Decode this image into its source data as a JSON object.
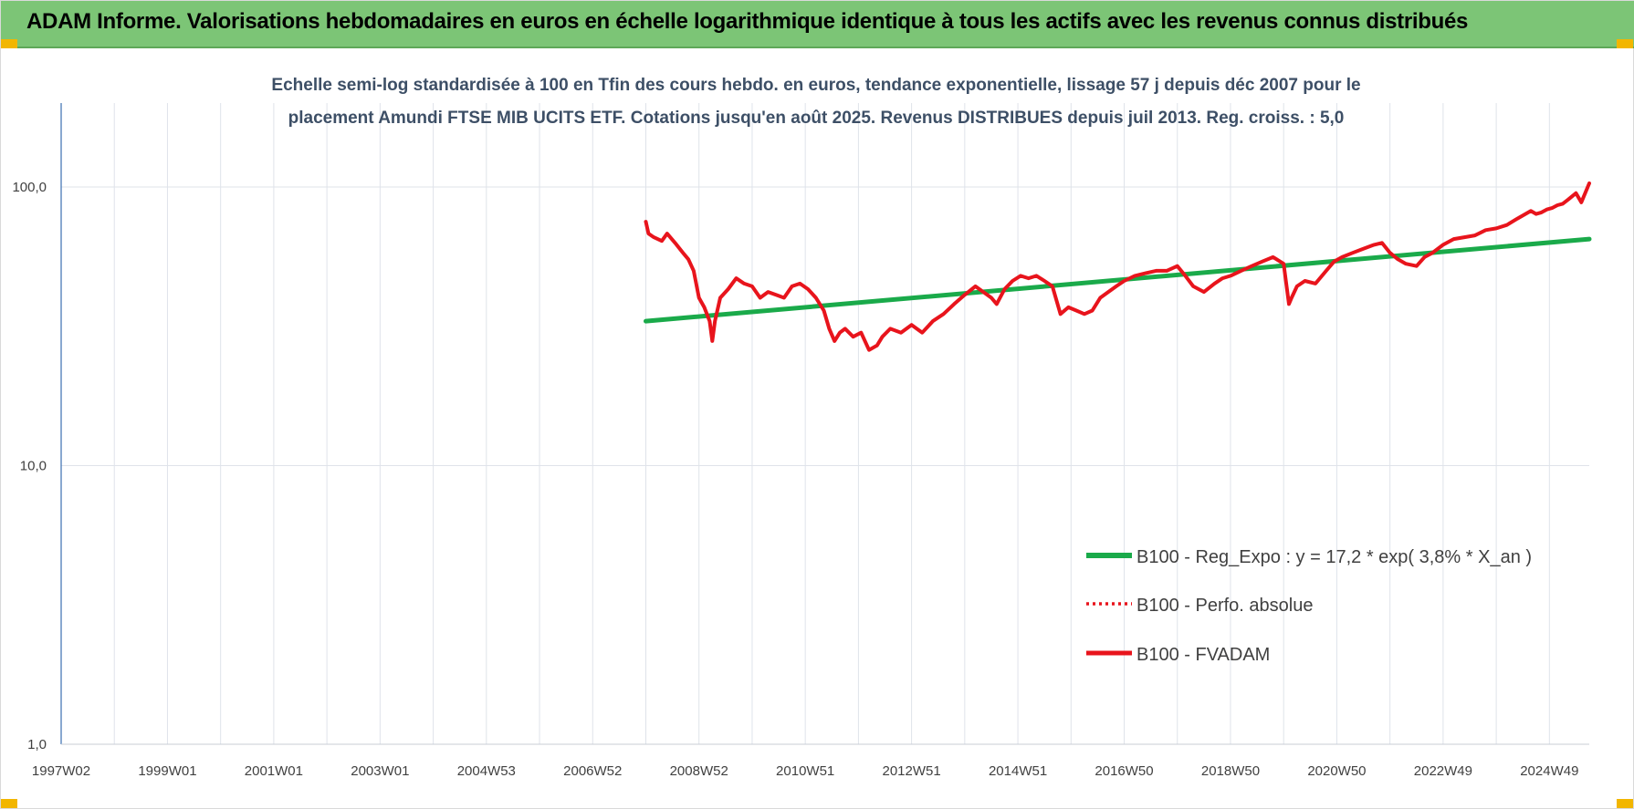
{
  "header": {
    "title": "ADAM Informe. Valorisations hebdomadaires en euros en échelle logarithmique identique à tous les actifs avec les revenus connus distribués"
  },
  "colors": {
    "banner": "#7cc576",
    "corner": "#f2b600",
    "regression": "#1aaa4a",
    "fvadam": "#e8141c",
    "perfo": "#e8141c"
  },
  "chart_data": {
    "type": "line",
    "title_lines": [
      "Echelle semi-log standardisée à 100 en Tfin des cours hebdo. en euros, tendance exponentielle, lissage 57 j depuis déc 2007 pour le",
      "placement Amundi FTSE MIB  UCITS ETF. Cotations jusqu'en août 2025.  Revenus DISTRIBUES depuis juil 2013.  Reg. croiss. : 5,0"
    ],
    "y_scale": "log",
    "ylim": [
      1,
      200
    ],
    "y_ticks": [
      {
        "value": 1,
        "label": "1,0"
      },
      {
        "value": 10,
        "label": "10,0"
      },
      {
        "value": 100,
        "label": "100,0"
      }
    ],
    "xlim": [
      1997.0,
      2025.75
    ],
    "x_ticks": [
      {
        "value": 1997.0,
        "label": "1997W02"
      },
      {
        "value": 1999.0,
        "label": "1999W01"
      },
      {
        "value": 2001.0,
        "label": "2001W01"
      },
      {
        "value": 2003.0,
        "label": "2003W01"
      },
      {
        "value": 2005.0,
        "label": "2004W53"
      },
      {
        "value": 2007.0,
        "label": "2006W52"
      },
      {
        "value": 2009.0,
        "label": "2008W52"
      },
      {
        "value": 2011.0,
        "label": "2010W51"
      },
      {
        "value": 2013.0,
        "label": "2012W51"
      },
      {
        "value": 2015.0,
        "label": "2014W51"
      },
      {
        "value": 2017.0,
        "label": "2016W50"
      },
      {
        "value": 2019.0,
        "label": "2018W50"
      },
      {
        "value": 2021.0,
        "label": "2020W50"
      },
      {
        "value": 2023.0,
        "label": "2022W49"
      },
      {
        "value": 2025.0,
        "label": "2024W49"
      }
    ],
    "grid": "vertical",
    "legend_position": "bottom-right",
    "series": [
      {
        "name": "B100 - Reg_Expo : y = 17,2 * exp( 3,8% *  X_an )",
        "style": "solid-thick",
        "color": "#1aaa4a",
        "x": [
          2008.0,
          2025.75
        ],
        "y": [
          33,
          65
        ]
      },
      {
        "name": "B100 - Perfo. absolue",
        "style": "dotted",
        "color": "#e8141c",
        "x": [],
        "y": []
      },
      {
        "name": "B100 - FVADAM",
        "style": "solid",
        "color": "#e8141c",
        "x": [
          2008.0,
          2008.05,
          2008.15,
          2008.3,
          2008.4,
          2008.55,
          2008.7,
          2008.8,
          2008.9,
          2009.0,
          2009.1,
          2009.2,
          2009.25,
          2009.3,
          2009.4,
          2009.55,
          2009.7,
          2009.85,
          2010.0,
          2010.15,
          2010.3,
          2010.45,
          2010.6,
          2010.75,
          2010.9,
          2011.05,
          2011.2,
          2011.35,
          2011.45,
          2011.55,
          2011.65,
          2011.75,
          2011.9,
          2012.05,
          2012.2,
          2012.35,
          2012.45,
          2012.6,
          2012.8,
          2013.0,
          2013.2,
          2013.4,
          2013.6,
          2013.8,
          2014.0,
          2014.2,
          2014.35,
          2014.5,
          2014.6,
          2014.75,
          2014.9,
          2015.05,
          2015.2,
          2015.35,
          2015.5,
          2015.65,
          2015.8,
          2015.95,
          2016.1,
          2016.25,
          2016.4,
          2016.55,
          2016.7,
          2016.85,
          2017.0,
          2017.2,
          2017.4,
          2017.6,
          2017.8,
          2018.0,
          2018.15,
          2018.3,
          2018.5,
          2018.7,
          2018.85,
          2019.0,
          2019.2,
          2019.4,
          2019.6,
          2019.8,
          2020.0,
          2020.1,
          2020.15,
          2020.25,
          2020.4,
          2020.6,
          2020.8,
          2020.95,
          2021.1,
          2021.3,
          2021.5,
          2021.7,
          2021.85,
          2022.0,
          2022.15,
          2022.3,
          2022.5,
          2022.65,
          2022.8,
          2023.0,
          2023.2,
          2023.4,
          2023.6,
          2023.8,
          2024.0,
          2024.2,
          2024.4,
          2024.55,
          2024.65,
          2024.75,
          2024.85,
          2024.95,
          2025.05,
          2025.15,
          2025.25,
          2025.35,
          2025.5,
          2025.6,
          2025.75
        ],
        "y": [
          75,
          68,
          66,
          64,
          68,
          63,
          58,
          55,
          50,
          40,
          37,
          33,
          28,
          33,
          40,
          43,
          47,
          45,
          44,
          40,
          42,
          41,
          40,
          44,
          45,
          43,
          40,
          36,
          31,
          28,
          30,
          31,
          29,
          30,
          26,
          27,
          29,
          31,
          30,
          32,
          30,
          33,
          35,
          38,
          41,
          44,
          42,
          40,
          38,
          43,
          46,
          48,
          47,
          48,
          46,
          44,
          35,
          37,
          36,
          35,
          36,
          40,
          42,
          44,
          46,
          48,
          49,
          50,
          50,
          52,
          48,
          44,
          42,
          45,
          47,
          48,
          50,
          52,
          54,
          56,
          53,
          38,
          40,
          44,
          46,
          45,
          50,
          54,
          56,
          58,
          60,
          62,
          63,
          58,
          55,
          53,
          52,
          56,
          58,
          62,
          65,
          66,
          67,
          70,
          71,
          73,
          77,
          80,
          82,
          80,
          81,
          83,
          84,
          86,
          87,
          90,
          95,
          88,
          103
        ]
      }
    ]
  }
}
